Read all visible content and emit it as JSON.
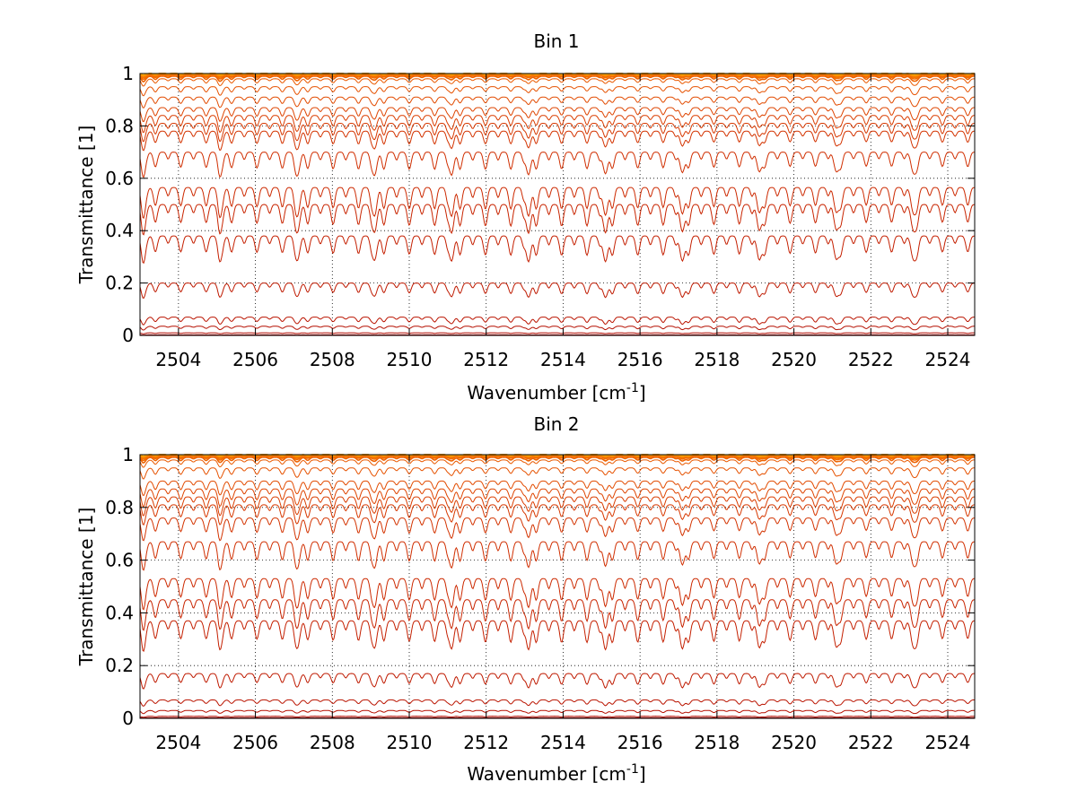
{
  "chart_data": [
    {
      "type": "line",
      "title": "Bin 1",
      "xlabel": "Wavenumber [cm",
      "xlabel_sup": "-1",
      "xlabel_suffix": "]",
      "ylabel": "Transmittance [1]",
      "xlim": [
        2503,
        2524.7
      ],
      "ylim": [
        0,
        1
      ],
      "xticks": [
        2504,
        2506,
        2508,
        2510,
        2512,
        2514,
        2516,
        2518,
        2520,
        2522,
        2524
      ],
      "yticks": [
        0,
        0.2,
        0.4,
        0.6,
        0.8,
        1
      ],
      "ytick_labels": [
        "0",
        "0.2",
        "0.4",
        "0.6",
        "0.8",
        "1"
      ],
      "grid": true,
      "grid_style": "dotted",
      "line_periods_cm-1": [
        2.0,
        0.66
      ],
      "line_centers_first": [
        2503.1,
        2503.4
      ],
      "series": [
        {
          "color": "#aa0000",
          "base": 0.002,
          "depth": 0.0005
        },
        {
          "color": "#b00a00",
          "base": 0.01,
          "depth": 0.003
        },
        {
          "color": "#b50f00",
          "base": 0.035,
          "depth": 0.012
        },
        {
          "color": "#ba1400",
          "base": 0.07,
          "depth": 0.025
        },
        {
          "color": "#bf1a00",
          "base": 0.2,
          "depth": 0.05
        },
        {
          "color": "#c41f00",
          "base": 0.38,
          "depth": 0.09
        },
        {
          "color": "#c82400",
          "base": 0.5,
          "depth": 0.1
        },
        {
          "color": "#cc2900",
          "base": 0.565,
          "depth": 0.1
        },
        {
          "color": "#d02e00",
          "base": 0.7,
          "depth": 0.08
        },
        {
          "color": "#d33300",
          "base": 0.78,
          "depth": 0.06
        },
        {
          "color": "#d73800",
          "base": 0.81,
          "depth": 0.055
        },
        {
          "color": "#da3d00",
          "base": 0.84,
          "depth": 0.05
        },
        {
          "color": "#de4400",
          "base": 0.87,
          "depth": 0.04
        },
        {
          "color": "#e24b00",
          "base": 0.91,
          "depth": 0.03
        },
        {
          "color": "#e65200",
          "base": 0.95,
          "depth": 0.025
        },
        {
          "color": "#ea5a00",
          "base": 0.98,
          "depth": 0.02
        },
        {
          "color": "#ee6200",
          "base": 0.99,
          "depth": 0.015
        },
        {
          "color": "#f26a00",
          "base": 0.995,
          "depth": 0.012
        },
        {
          "color": "#f57400",
          "base": 0.998,
          "depth": 0.01
        },
        {
          "color": "#f88000",
          "base": 1.0,
          "depth": 0.008
        },
        {
          "color": "#fb8c00",
          "base": 1.0,
          "depth": 0.006
        },
        {
          "color": "#ffa500",
          "base": 1.0,
          "depth": 0.004
        }
      ]
    },
    {
      "type": "line",
      "title": "Bin 2",
      "xlabel": "Wavenumber [cm",
      "xlabel_sup": "-1",
      "xlabel_suffix": "]",
      "ylabel": "Transmittance [1]",
      "xlim": [
        2503,
        2524.7
      ],
      "ylim": [
        0,
        1
      ],
      "xticks": [
        2504,
        2506,
        2508,
        2510,
        2512,
        2514,
        2516,
        2518,
        2520,
        2522,
        2524
      ],
      "yticks": [
        0,
        0.2,
        0.4,
        0.6,
        0.8,
        1
      ],
      "ytick_labels": [
        "0",
        "0.2",
        "0.4",
        "0.6",
        "0.8",
        "1"
      ],
      "grid": true,
      "grid_style": "dotted",
      "line_periods_cm-1": [
        2.0,
        0.66
      ],
      "line_centers_first": [
        2503.1,
        2503.4
      ],
      "series": [
        {
          "color": "#aa0000",
          "base": 0.002,
          "depth": 0.0005
        },
        {
          "color": "#b00a00",
          "base": 0.008,
          "depth": 0.003
        },
        {
          "color": "#b50f00",
          "base": 0.03,
          "depth": 0.01
        },
        {
          "color": "#ba1400",
          "base": 0.07,
          "depth": 0.02
        },
        {
          "color": "#bf1a00",
          "base": 0.17,
          "depth": 0.05
        },
        {
          "color": "#c41f00",
          "base": 0.37,
          "depth": 0.1
        },
        {
          "color": "#c82400",
          "base": 0.45,
          "depth": 0.1
        },
        {
          "color": "#cc2900",
          "base": 0.53,
          "depth": 0.1
        },
        {
          "color": "#d02e00",
          "base": 0.67,
          "depth": 0.09
        },
        {
          "color": "#d33300",
          "base": 0.76,
          "depth": 0.07
        },
        {
          "color": "#d73800",
          "base": 0.81,
          "depth": 0.06
        },
        {
          "color": "#da3d00",
          "base": 0.84,
          "depth": 0.055
        },
        {
          "color": "#de4400",
          "base": 0.87,
          "depth": 0.05
        },
        {
          "color": "#e24b00",
          "base": 0.9,
          "depth": 0.04
        },
        {
          "color": "#e65200",
          "base": 0.95,
          "depth": 0.03
        },
        {
          "color": "#ea5a00",
          "base": 0.98,
          "depth": 0.02
        },
        {
          "color": "#ee6200",
          "base": 0.99,
          "depth": 0.015
        },
        {
          "color": "#f26a00",
          "base": 0.995,
          "depth": 0.012
        },
        {
          "color": "#f57400",
          "base": 0.998,
          "depth": 0.01
        },
        {
          "color": "#f88000",
          "base": 1.0,
          "depth": 0.008
        },
        {
          "color": "#fb8c00",
          "base": 1.0,
          "depth": 0.006
        },
        {
          "color": "#ffa500",
          "base": 1.0,
          "depth": 0.004
        }
      ]
    }
  ]
}
